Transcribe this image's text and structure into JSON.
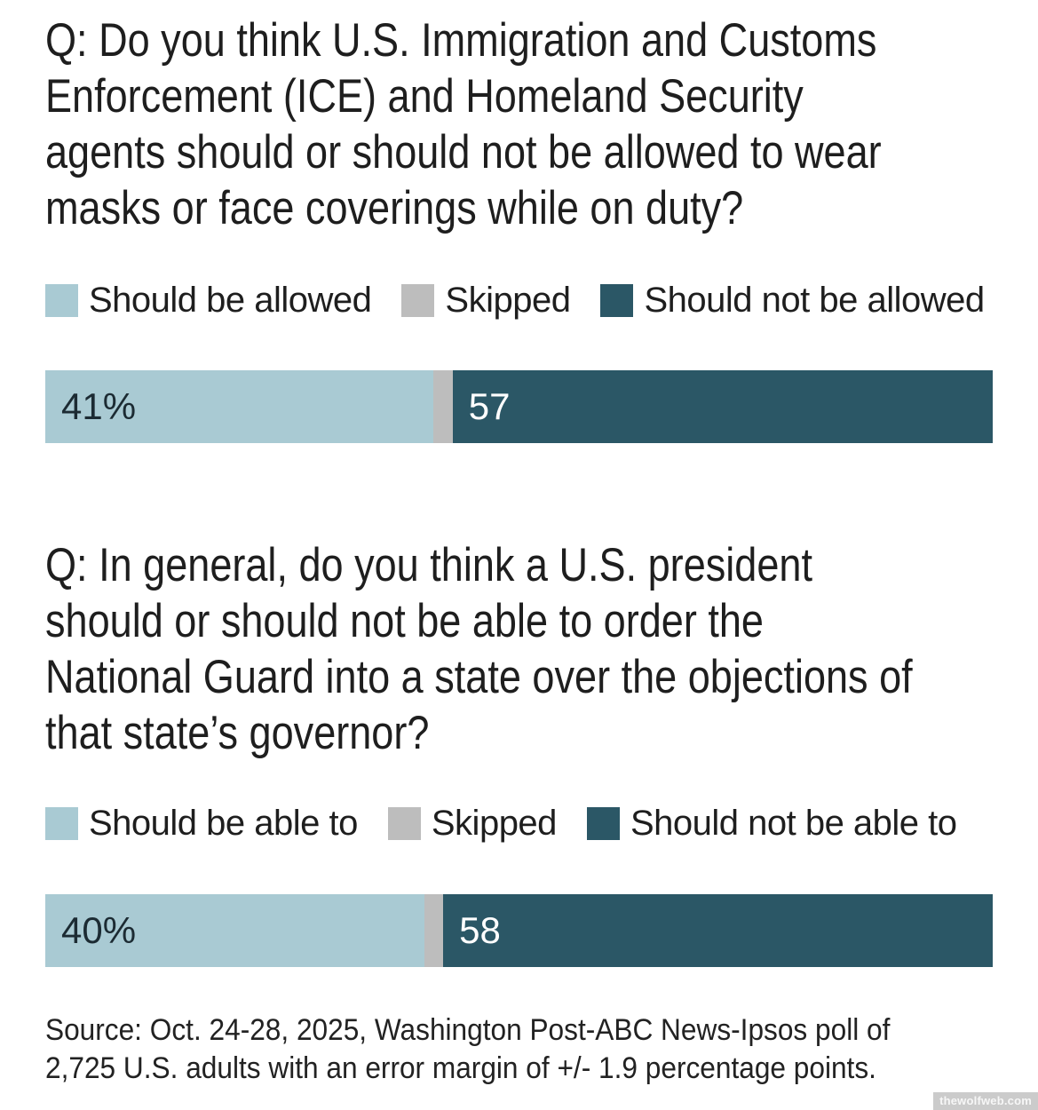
{
  "colors": {
    "light_blue": "#a9cad3",
    "gray": "#bdbdbd",
    "dark_teal": "#2b5766",
    "text": "#1e1e1e",
    "bar_label_dark": "#1c2b33",
    "bar_label_light": "#ffffff",
    "watermark_bg": "#cbcbcb"
  },
  "polls": [
    {
      "question": "Q: Do you think U.S. Immigration and Customs Enforcement (ICE) and Homeland Security agents should or should not be allowed to wear masks or face coverings while on duty?",
      "question_lines": [
        "Q: Do you think U.S. Immigration and Customs",
        "Enforcement (ICE) and Homeland Security",
        "agents should or should not be allowed to wear",
        "masks or face coverings while on duty?"
      ],
      "legend": [
        {
          "label": "Should be allowed",
          "color": "#a9cad3"
        },
        {
          "label": "Skipped",
          "color": "#bdbdbd"
        },
        {
          "label": "Should not be allowed",
          "color": "#2b5766"
        }
      ],
      "bar": {
        "segments": [
          {
            "name": "Should be allowed",
            "pct": 41,
            "value_label": "41%",
            "color": "#a9cad3",
            "label_color": "#1c2b33"
          },
          {
            "name": "Skipped",
            "pct": 2,
            "value_label": "",
            "color": "#bdbdbd",
            "label_color": "#1c2b33"
          },
          {
            "name": "Should not be allowed",
            "pct": 57,
            "value_label": "57",
            "color": "#2b5766",
            "label_color": "#ffffff"
          }
        ]
      }
    },
    {
      "question": "Q: In general, do you think a U.S. president should or should not be able to order the National Guard into a state over the objections of that state’s governor?",
      "question_lines": [
        "Q: In general, do you think a U.S. president",
        "should or should not be able to order the",
        "National Guard into a state over the objections of",
        "that state’s governor?"
      ],
      "legend": [
        {
          "label": "Should be able to",
          "color": "#a9cad3"
        },
        {
          "label": "Skipped",
          "color": "#bdbdbd"
        },
        {
          "label": "Should not be able to",
          "color": "#2b5766"
        }
      ],
      "bar": {
        "segments": [
          {
            "name": "Should be able to",
            "pct": 40,
            "value_label": "40%",
            "color": "#a9cad3",
            "label_color": "#1c2b33"
          },
          {
            "name": "Skipped",
            "pct": 2,
            "value_label": "",
            "color": "#bdbdbd",
            "label_color": "#1c2b33"
          },
          {
            "name": "Should not be able to",
            "pct": 58,
            "value_label": "58",
            "color": "#2b5766",
            "label_color": "#ffffff"
          }
        ]
      }
    }
  ],
  "source": "Source: Oct. 24-28, 2025, Washington Post-ABC News-Ipsos poll of 2,725 U.S. adults with an error margin of +/- 1.9 percentage points.",
  "source_lines": [
    "Source: Oct. 24-28, 2025, Washington Post-ABC News-Ipsos poll of",
    "2,725 U.S. adults with an error margin of +/- 1.9 percentage points."
  ],
  "watermark": "thewolfweb.com",
  "chart_data": [
    {
      "type": "bar",
      "subtype": "stacked-horizontal",
      "title": "Q: Do you think U.S. Immigration and Customs Enforcement (ICE) and Homeland Security agents should or should not be allowed to wear masks or face coverings while on duty?",
      "categories": [
        "Should be allowed",
        "Skipped",
        "Should not be allowed"
      ],
      "values": [
        41,
        2,
        57
      ],
      "data_labels": [
        "41%",
        "",
        "57"
      ],
      "unit": "percent",
      "xlim": [
        0,
        100
      ],
      "legend_position": "top",
      "grid": false,
      "colors": [
        "#a9cad3",
        "#bdbdbd",
        "#2b5766"
      ]
    },
    {
      "type": "bar",
      "subtype": "stacked-horizontal",
      "title": "Q: In general, do you think a U.S. president should or should not be able to order the National Guard into a state over the objections of that state’s governor?",
      "categories": [
        "Should be able to",
        "Skipped",
        "Should not be able to"
      ],
      "values": [
        40,
        2,
        58
      ],
      "data_labels": [
        "40%",
        "",
        "58"
      ],
      "unit": "percent",
      "xlim": [
        0,
        100
      ],
      "legend_position": "top",
      "grid": false,
      "colors": [
        "#a9cad3",
        "#bdbdbd",
        "#2b5766"
      ]
    }
  ]
}
